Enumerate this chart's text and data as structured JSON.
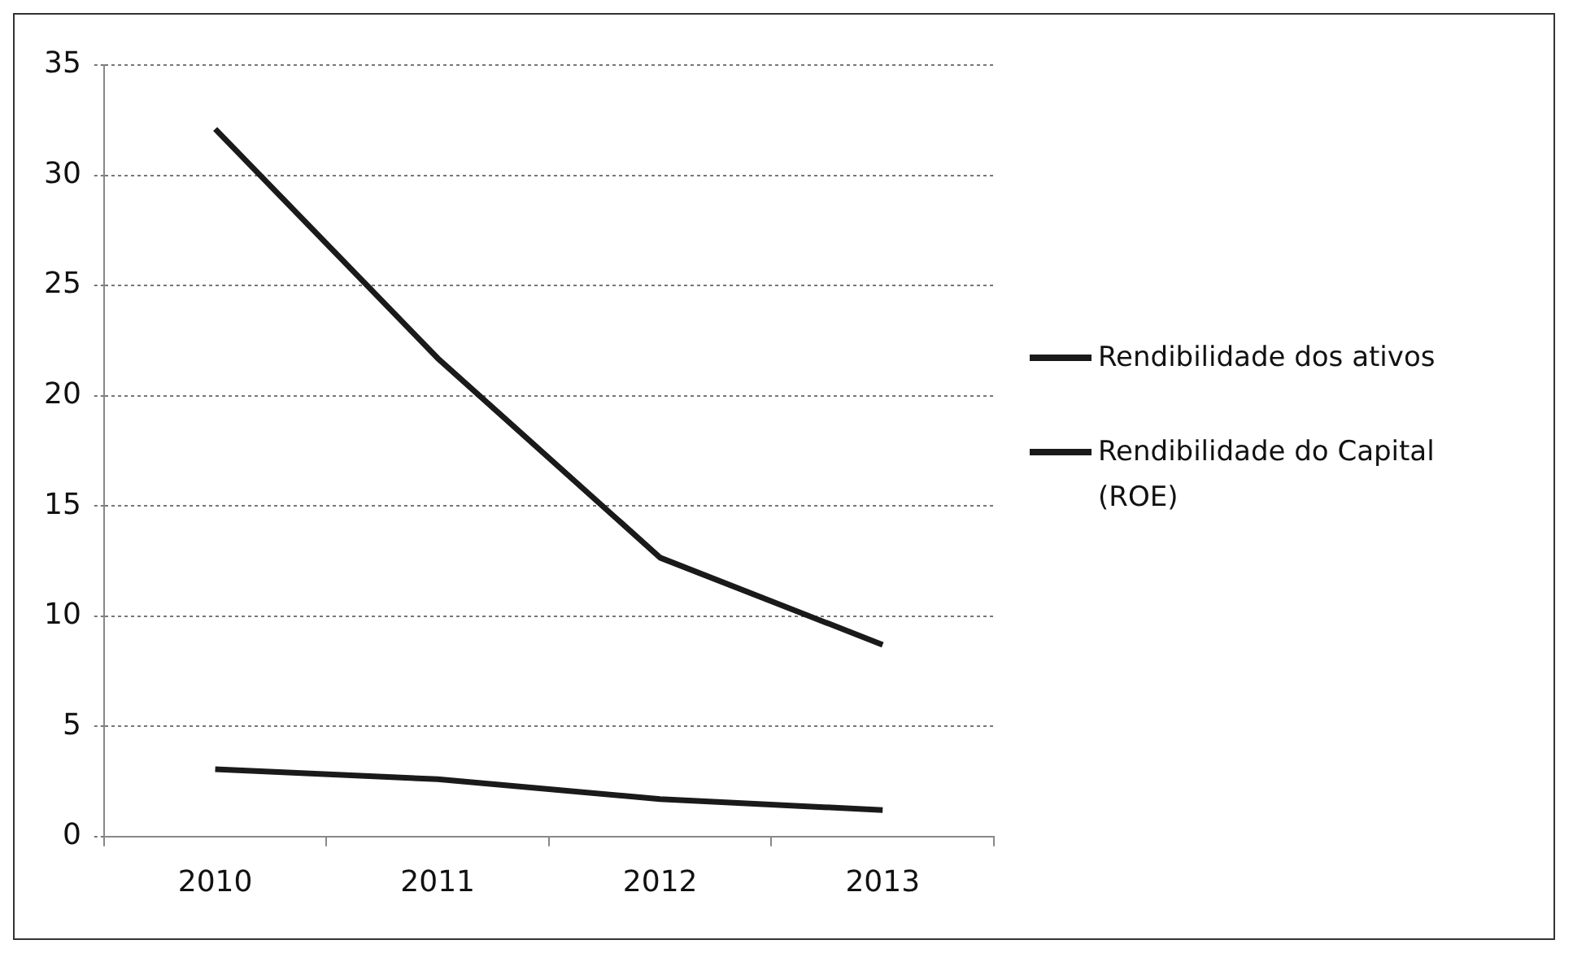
{
  "chart_data": {
    "type": "line",
    "categories": [
      "2010",
      "2011",
      "2012",
      "2013"
    ],
    "series": [
      {
        "name": "Rendibilidade dos ativos",
        "color": "#1a1a1a",
        "values": [
          3.05,
          2.6,
          1.7,
          1.2
        ]
      },
      {
        "name": "Rendibilidade do Capital (ROE)",
        "color": "#1a1a1a",
        "values": [
          32.1,
          21.7,
          12.65,
          8.7
        ]
      }
    ],
    "ylim": [
      0,
      35
    ],
    "yticks": [
      0,
      5,
      10,
      15,
      20,
      25,
      30,
      35
    ],
    "grid": "y",
    "legend": "right",
    "marker": "none",
    "line_style": "solid"
  }
}
